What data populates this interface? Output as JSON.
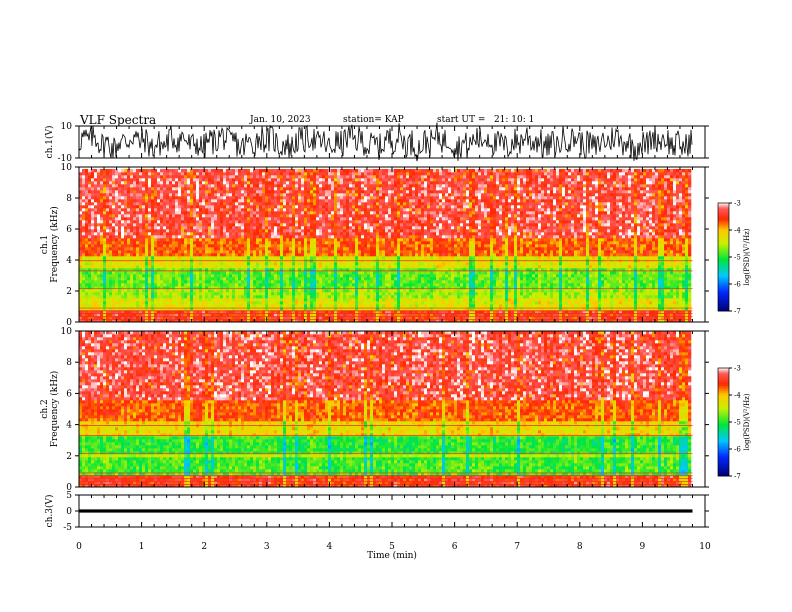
{
  "header": {
    "title": "VLF Spectra",
    "date": "Jan. 10, 2023",
    "station": "station= KAP",
    "start": "start UT =   21: 10: 1"
  },
  "chart_data": [
    {
      "type": "line",
      "panel": "ch1-waveform",
      "ylabel": "ch.1(V)",
      "ylim": [
        -10,
        10
      ],
      "yticks": [
        10,
        -10
      ],
      "xlim": [
        0,
        10
      ],
      "x_end": 9.8,
      "description_values": {
        "typical_amplitude_v": [
          -7,
          7
        ]
      },
      "color": "#000000"
    },
    {
      "type": "heatmap",
      "panel": "ch1-spectrogram",
      "ylabel": "Frequency (kHz)",
      "channel_label": "ch.1",
      "ylim": [
        0,
        10
      ],
      "yticks": [
        0,
        2,
        4,
        6,
        8,
        10
      ],
      "xlim": [
        0,
        10
      ],
      "x_end": 9.8,
      "bands": [
        {
          "from_khz": 0,
          "to_khz": 0.8,
          "level": -3.5
        },
        {
          "from_khz": 0.8,
          "to_khz": 1.5,
          "level": -4.3
        },
        {
          "from_khz": 1.5,
          "to_khz": 2.2,
          "level": -4.6
        },
        {
          "from_khz": 2.2,
          "to_khz": 3.4,
          "level": -4.8
        },
        {
          "from_khz": 3.4,
          "to_khz": 4.3,
          "level": -4.3
        },
        {
          "from_khz": 4.3,
          "to_khz": 5.5,
          "level": -3.7
        },
        {
          "from_khz": 5.5,
          "to_khz": 10,
          "level": -3.0
        }
      ],
      "colorbar": {
        "label": "log(PSD)(V²/Hz)",
        "range": [
          -7,
          -3
        ],
        "ticks": [
          -3,
          -4,
          -5,
          -6,
          -7
        ]
      }
    },
    {
      "type": "heatmap",
      "panel": "ch2-spectrogram",
      "ylabel": "Frequency (kHz)",
      "channel_label": "ch.2",
      "ylim": [
        0,
        10
      ],
      "yticks": [
        0,
        2,
        4,
        6,
        8,
        10
      ],
      "xlim": [
        0,
        10
      ],
      "x_end": 9.8,
      "bands": [
        {
          "from_khz": 0,
          "to_khz": 0.8,
          "level": -3.5
        },
        {
          "from_khz": 0.8,
          "to_khz": 1.9,
          "level": -4.9
        },
        {
          "from_khz": 1.9,
          "to_khz": 2.2,
          "level": -4.4
        },
        {
          "from_khz": 2.2,
          "to_khz": 3.2,
          "level": -5.0
        },
        {
          "from_khz": 3.2,
          "to_khz": 4.3,
          "level": -4.2
        },
        {
          "from_khz": 4.3,
          "to_khz": 5.5,
          "level": -3.7
        },
        {
          "from_khz": 5.5,
          "to_khz": 10,
          "level": -3.0
        }
      ],
      "colorbar": {
        "label": "log(PSD)(V²/Hz)",
        "range": [
          -7,
          -3
        ],
        "ticks": [
          -3,
          -4,
          -5,
          -6,
          -7
        ]
      }
    },
    {
      "type": "line",
      "panel": "ch3-waveform",
      "ylabel": "ch.3(V)",
      "ylim": [
        -5,
        5
      ],
      "yticks": [
        5,
        0,
        -5
      ],
      "xlim": [
        0,
        10
      ],
      "x_end": 9.8,
      "description_values": {
        "typical_amplitude_v": [
          -0.5,
          0.5
        ]
      },
      "color": "#000000",
      "xlabel": "Time (min)",
      "xticks": [
        0,
        1,
        2,
        3,
        4,
        5,
        6,
        7,
        8,
        9,
        10
      ]
    }
  ]
}
